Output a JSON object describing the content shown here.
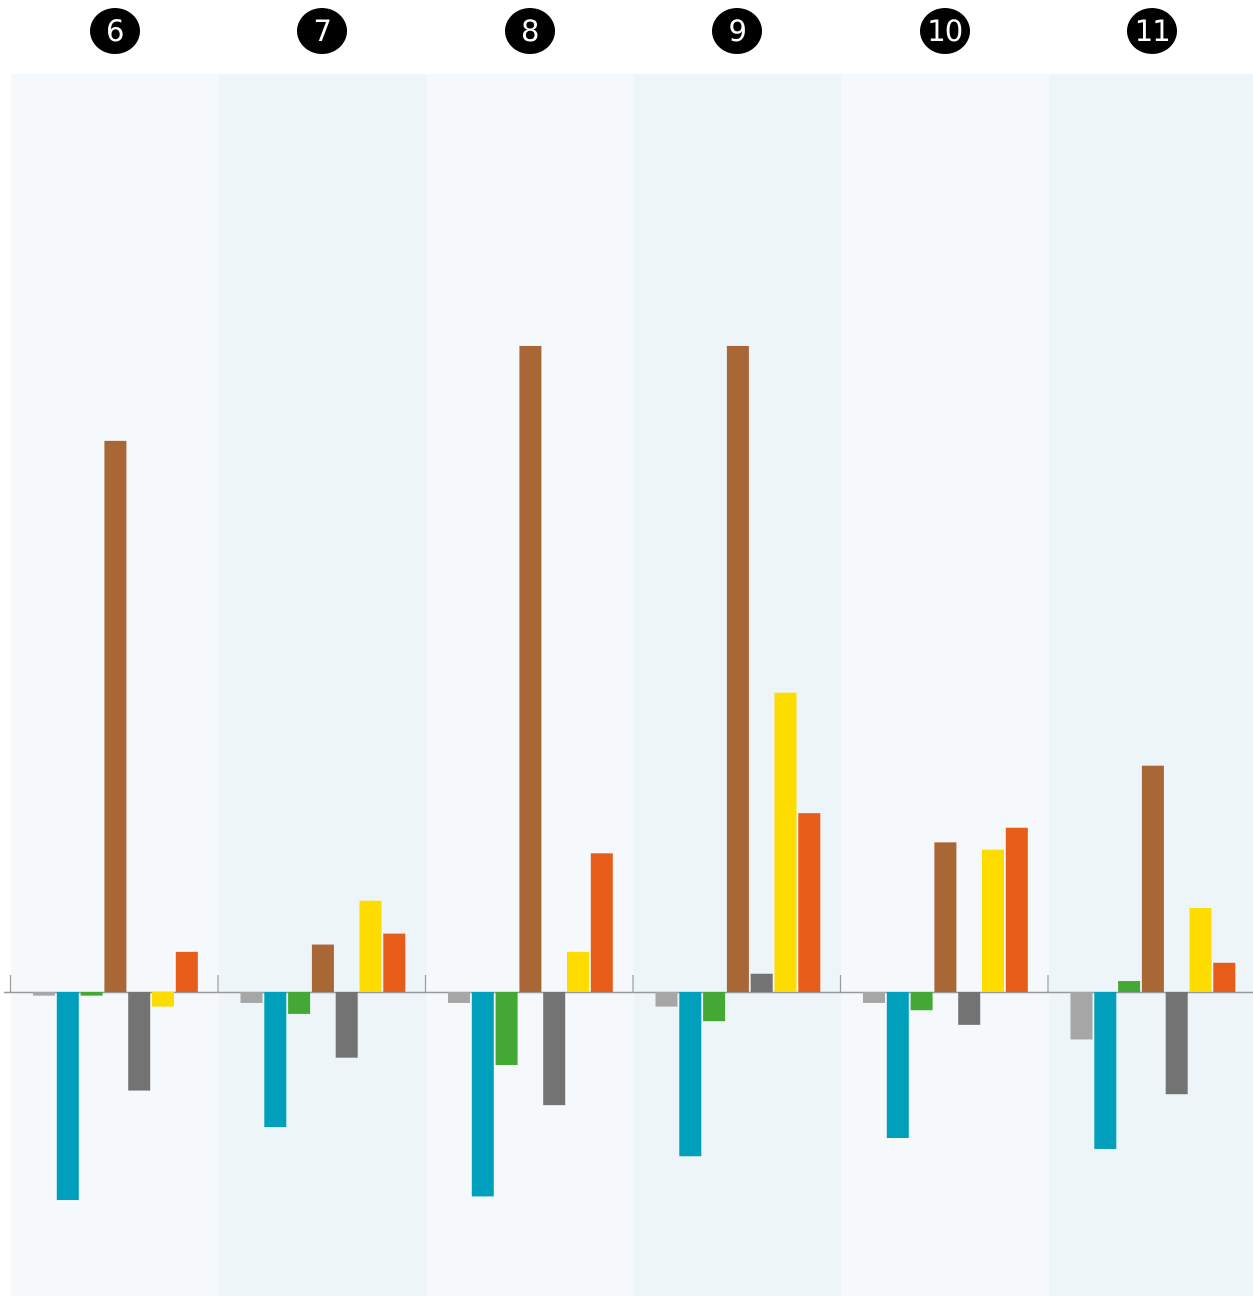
{
  "chart_data": {
    "type": "bar",
    "panels": [
      "6",
      "7",
      "8",
      "9",
      "10",
      "11"
    ],
    "series_colors": [
      "#a6a6a6",
      "#00a0bc",
      "#44a934",
      "#a86734",
      "#737373",
      "#ffdc00",
      "#e85c1a"
    ],
    "panel_shades": [
      "#f5f9fc",
      "#edf5f9"
    ],
    "axis_color": "#9a9a9a",
    "ylim": [
      -60,
      190
    ],
    "series_values": [
      [
        -1,
        -57,
        -1,
        151,
        -27,
        -4,
        11
      ],
      [
        -3,
        -37,
        -6,
        13,
        -18,
        25,
        16
      ],
      [
        -3,
        -56,
        -20,
        177,
        -31,
        11,
        38
      ],
      [
        -4,
        -45,
        -8,
        177,
        5,
        82,
        49
      ],
      [
        -3,
        -40,
        -5,
        41,
        -9,
        39,
        45
      ],
      [
        -13,
        -43,
        3,
        62,
        -28,
        23,
        8
      ]
    ]
  }
}
